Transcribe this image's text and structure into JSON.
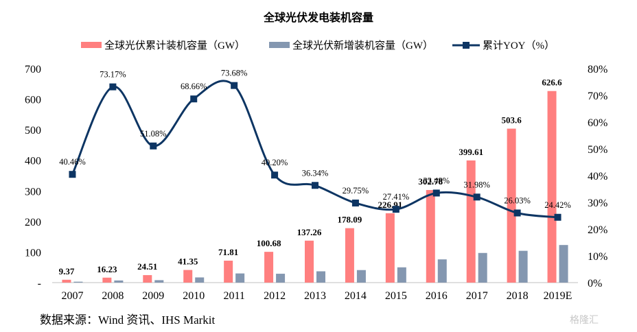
{
  "chart_data": {
    "type": "bar",
    "title": "全球光伏发电装机容量",
    "categories": [
      "2007",
      "2008",
      "2009",
      "2010",
      "2011",
      "2012",
      "2013",
      "2014",
      "2015",
      "2016",
      "2017",
      "2018",
      "2019E"
    ],
    "series": [
      {
        "name": "全球光伏累计装机容量（GW）",
        "type": "bar",
        "axis": "left",
        "color": "#ff7f7f",
        "values": [
          9.37,
          16.23,
          24.51,
          41.35,
          71.81,
          100.68,
          137.26,
          178.09,
          226.91,
          302.78,
          399.61,
          503.6,
          626.6
        ],
        "labels": [
          "9.37",
          "16.23",
          "24.51",
          "41.35",
          "71.81",
          "100.68",
          "137.26",
          "178.09",
          "226.91",
          "302.78",
          "399.61",
          "503.6",
          "626.6"
        ]
      },
      {
        "name": "全球光伏新增装机容量（GW）",
        "type": "bar",
        "axis": "left",
        "color": "#8497b0",
        "values": [
          3,
          7,
          8,
          17,
          30,
          29,
          37,
          41,
          50,
          76,
          97,
          104,
          123
        ]
      },
      {
        "name": "累计YOY（%）",
        "type": "line",
        "axis": "right",
        "color": "#0d3563",
        "values": [
          40.46,
          73.17,
          51.08,
          68.66,
          73.68,
          40.2,
          36.34,
          29.75,
          27.41,
          33.48,
          31.98,
          26.03,
          24.42
        ],
        "labels": [
          "40.46%",
          "73.17%",
          "51.08%",
          "68.66%",
          "73.68%",
          "40.20%",
          "36.34%",
          "29.75%",
          "27.41%",
          "33.48%",
          "31.98%",
          "26.03%",
          "24.42%"
        ]
      }
    ],
    "left_axis": {
      "range": [
        0,
        700
      ],
      "ticks": [
        "-",
        "100",
        "200",
        "300",
        "400",
        "500",
        "600",
        "700"
      ]
    },
    "right_axis": {
      "range": [
        0,
        80
      ],
      "ticks": [
        "0%",
        "10%",
        "20%",
        "30%",
        "40%",
        "50%",
        "60%",
        "70%",
        "80%"
      ]
    },
    "legend_position": "top",
    "grid": false
  },
  "source_text": "数据来源：Wind 资讯、IHS Markit",
  "watermark": "格隆汇"
}
